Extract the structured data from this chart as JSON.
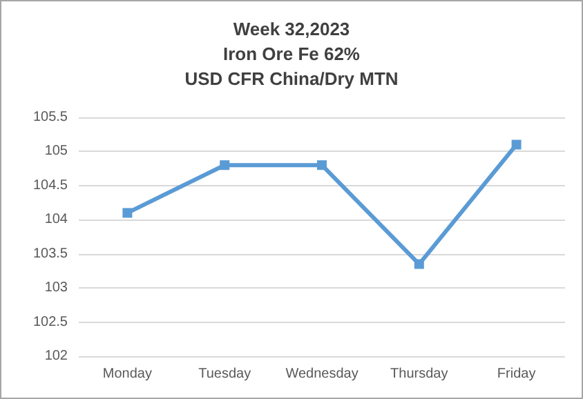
{
  "chart_data": {
    "type": "line",
    "title": "Week 32,2023\nIron Ore Fe 62%\nUSD CFR China/Dry MTN",
    "categories": [
      "Monday",
      "Tuesday",
      "Wednesday",
      "Thursday",
      "Friday"
    ],
    "series": [
      {
        "color": "#5b9bd5",
        "values": [
          104.1,
          104.8,
          104.8,
          103.35,
          105.1
        ]
      }
    ],
    "ylim": [
      102,
      105.5
    ],
    "yticks": [
      102,
      102.5,
      103,
      103.5,
      104,
      104.5,
      105,
      105.5
    ],
    "grid": "y",
    "marker": "square",
    "line_style": "solid"
  }
}
